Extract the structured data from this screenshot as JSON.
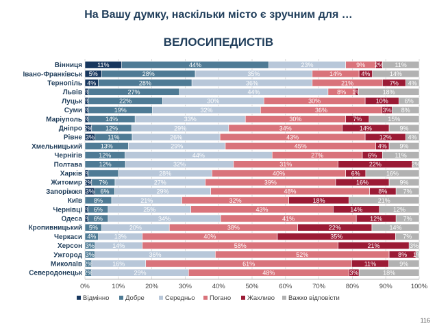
{
  "page_number": "116",
  "chart_data": {
    "type": "bar",
    "orientation": "horizontal",
    "stacked": true,
    "title": "На Вашу думку, наскільки місто є зручним для …",
    "subtitle": "ВЕЛОСИПЕДИСТІВ",
    "xlabel": "",
    "ylabel": "",
    "xlim": [
      0,
      100
    ],
    "x_ticks": [
      "0%",
      "10%",
      "20%",
      "30%",
      "40%",
      "50%",
      "60%",
      "70%",
      "80%",
      "90%",
      "100%"
    ],
    "grid": true,
    "legend_position": "bottom",
    "categories": [
      "Вінниця",
      "Івано-Франківськ",
      "Тернопіль",
      "Львів",
      "Луцьк",
      "Суми",
      "Маріуполь",
      "Дніпро",
      "Рівне",
      "Хмельницький",
      "Чернігів",
      "Полтава",
      "Харків",
      "Житомир",
      "Запоріжжя",
      "Київ",
      "Чернівці",
      "Одеса",
      "Кропивницький",
      "Черкаси",
      "Херсон",
      "Ужгород",
      "Миколаїв",
      "Северодонецьк"
    ],
    "series": [
      {
        "name": "Відмінно",
        "color": "#17375e",
        "values": [
          11,
          5,
          4,
          1,
          1,
          1,
          1,
          2,
          3,
          0,
          0,
          0,
          1,
          2,
          3,
          0,
          1,
          1,
          0,
          0,
          0,
          0,
          0,
          0
        ],
        "labels": [
          "11%",
          "5%",
          "4%",
          "1%",
          "1%",
          "1%",
          "1%",
          "2%",
          "3%",
          "",
          "",
          "",
          "1%",
          "2%",
          "3%",
          "",
          "1%",
          "1%",
          "",
          "",
          "",
          "",
          "",
          ""
        ]
      },
      {
        "name": "Добре",
        "color": "#4f7b95",
        "values": [
          44,
          28,
          28,
          27,
          22,
          19,
          14,
          12,
          11,
          13,
          12,
          12,
          9,
          7,
          6,
          8,
          6,
          6,
          5,
          4,
          3,
          3,
          2,
          2
        ],
        "labels": [
          "44%",
          "28%",
          "28%",
          "27%",
          "22%",
          "19%",
          "14%",
          "12%",
          "11%",
          "13%",
          "12%",
          "12%",
          "",
          "7%",
          "6%",
          "8%",
          "6%",
          "6%",
          "5%",
          "4%",
          "3%",
          "3%",
          "2%",
          "2%"
        ]
      },
      {
        "name": "Середньо",
        "color": "#b8c7d9",
        "values": [
          23,
          35,
          36,
          44,
          30,
          32,
          33,
          29,
          26,
          29,
          44,
          32,
          28,
          27,
          29,
          21,
          25,
          34,
          20,
          13,
          14,
          36,
          16,
          29
        ],
        "labels": [
          "23%",
          "35%",
          "36%",
          "44%",
          "30%",
          "32%",
          "33%",
          "29%",
          "26%",
          "29%",
          "44%",
          "32%",
          "28%",
          "27%",
          "29%",
          "21%",
          "25%",
          "34%",
          "20%",
          "13%",
          "14%",
          "36%",
          "16%",
          "29%"
        ]
      },
      {
        "name": "Погано",
        "color": "#d9737b",
        "values": [
          9,
          14,
          21,
          8,
          30,
          36,
          30,
          34,
          43,
          45,
          27,
          31,
          40,
          39,
          48,
          32,
          43,
          41,
          38,
          40,
          58,
          52,
          61,
          48
        ],
        "labels": [
          "9%",
          "14%",
          "21%",
          "8%",
          "30%",
          "36%",
          "30%",
          "34%",
          "43%",
          "45%",
          "27%",
          "31%",
          "40%",
          "39%",
          "48%",
          "32%",
          "43%",
          "41%",
          "38%",
          "40%",
          "58%",
          "52%",
          "61%",
          "48%"
        ]
      },
      {
        "name": "Жахливо",
        "color": "#9b1b35",
        "values": [
          2,
          4,
          7,
          1,
          10,
          3,
          7,
          14,
          12,
          4,
          6,
          22,
          6,
          16,
          8,
          18,
          14,
          12,
          22,
          35,
          21,
          8,
          11,
          3
        ],
        "labels": [
          "2%",
          "4%",
          "7%",
          "1%",
          "10%",
          "3%",
          "7%",
          "14%",
          "12%",
          "4%",
          "6%",
          "22%",
          "6%",
          "16%",
          "8%",
          "18%",
          "14%",
          "12%",
          "22%",
          "35%",
          "21%",
          "8%",
          "11%",
          "3%"
        ]
      },
      {
        "name": "Важко відповісти",
        "color": "#b2b2b2",
        "values": [
          11,
          14,
          4,
          18,
          6,
          8,
          15,
          9,
          4,
          9,
          11,
          2,
          16,
          9,
          7,
          21,
          12,
          7,
          14,
          7,
          3,
          1,
          9,
          18
        ],
        "labels": [
          "11%",
          "14%",
          "4%",
          "18%",
          "6%",
          "8%",
          "15%",
          "9%",
          "4%",
          "9%",
          "11%",
          "2%",
          "16%",
          "9%",
          "7%",
          "21%",
          "12%",
          "7%",
          "14%",
          "7%",
          "3%",
          "1%",
          "9%",
          "18%"
        ]
      }
    ]
  }
}
